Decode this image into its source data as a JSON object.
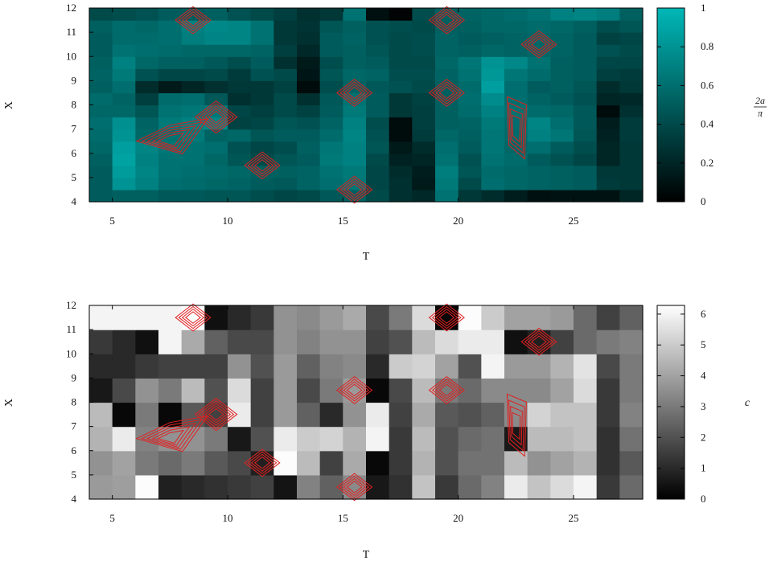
{
  "chart_data": [
    {
      "type": "heatmap",
      "title": "",
      "xlabel": "T",
      "ylabel": "X",
      "colorbar_label": "2a/π",
      "colorbar_label_num": "2a",
      "colorbar_label_den": "π",
      "colormap": "black-to-teal",
      "color_low": "#000000",
      "color_high": "#00b8b8",
      "xlim": [
        4,
        28
      ],
      "ylim": [
        4,
        12
      ],
      "clim": [
        0,
        1
      ],
      "x_ticks": [
        5,
        10,
        15,
        20,
        25
      ],
      "y_ticks": [
        4,
        5,
        6,
        7,
        8,
        9,
        10,
        11,
        12
      ],
      "color_ticks": [
        0,
        0.2,
        0.4,
        0.6,
        0.8,
        1
      ],
      "x": [
        4.5,
        5.5,
        6.5,
        7.5,
        8.5,
        9.5,
        10.5,
        11.5,
        12.5,
        13.5,
        14.5,
        15.5,
        16.5,
        17.5,
        18.5,
        19.5,
        20.5,
        21.5,
        22.5,
        23.5,
        24.5,
        25.5,
        26.5,
        27.5
      ],
      "y": [
        4.25,
        4.75,
        5.25,
        5.75,
        6.25,
        6.75,
        7.25,
        7.75,
        8.25,
        8.75,
        9.25,
        9.75,
        10.25,
        10.75,
        11.25,
        11.75
      ],
      "z": [
        [
          0.5,
          0.52,
          0.52,
          0.48,
          0.48,
          0.46,
          0.46,
          0.42,
          0.38,
          0.4,
          0.48,
          0.52,
          0.4,
          0.26,
          0.22,
          0.62,
          0.3,
          0.24,
          0.16,
          0.08,
          0.1,
          0.1,
          0.1,
          0.2
        ],
        [
          0.5,
          0.8,
          0.7,
          0.6,
          0.58,
          0.56,
          0.54,
          0.5,
          0.48,
          0.54,
          0.6,
          0.64,
          0.38,
          0.26,
          0.14,
          0.66,
          0.4,
          0.6,
          0.56,
          0.54,
          0.52,
          0.5,
          0.32,
          0.3
        ],
        [
          0.5,
          0.84,
          0.72,
          0.62,
          0.6,
          0.58,
          0.56,
          0.52,
          0.52,
          0.54,
          0.62,
          0.66,
          0.38,
          0.24,
          0.16,
          0.68,
          0.46,
          0.58,
          0.56,
          0.54,
          0.52,
          0.5,
          0.3,
          0.3
        ],
        [
          0.52,
          0.88,
          0.7,
          0.62,
          0.62,
          0.56,
          0.46,
          0.4,
          0.46,
          0.5,
          0.66,
          0.7,
          0.4,
          0.18,
          0.2,
          0.62,
          0.44,
          0.62,
          0.58,
          0.5,
          0.44,
          0.38,
          0.2,
          0.3
        ],
        [
          0.56,
          0.86,
          0.72,
          0.64,
          0.62,
          0.6,
          0.44,
          0.38,
          0.42,
          0.52,
          0.64,
          0.7,
          0.46,
          0.14,
          0.24,
          0.6,
          0.5,
          0.64,
          0.56,
          0.6,
          0.5,
          0.42,
          0.2,
          0.3
        ],
        [
          0.58,
          0.8,
          0.56,
          0.62,
          0.66,
          0.54,
          0.56,
          0.46,
          0.5,
          0.5,
          0.58,
          0.72,
          0.44,
          0.06,
          0.32,
          0.56,
          0.52,
          0.64,
          0.58,
          0.7,
          0.64,
          0.46,
          0.18,
          0.32
        ],
        [
          0.6,
          0.78,
          0.54,
          0.66,
          0.7,
          0.74,
          0.36,
          0.38,
          0.46,
          0.44,
          0.54,
          0.7,
          0.42,
          0.06,
          0.34,
          0.52,
          0.54,
          0.66,
          0.6,
          0.72,
          0.6,
          0.48,
          0.16,
          0.32
        ],
        [
          0.56,
          0.56,
          0.46,
          0.62,
          0.64,
          0.66,
          0.38,
          0.34,
          0.4,
          0.36,
          0.5,
          0.66,
          0.5,
          0.3,
          0.34,
          0.52,
          0.58,
          0.7,
          0.62,
          0.58,
          0.56,
          0.48,
          0.06,
          0.26
        ],
        [
          0.58,
          0.54,
          0.34,
          0.58,
          0.6,
          0.48,
          0.26,
          0.3,
          0.4,
          0.26,
          0.48,
          0.62,
          0.5,
          0.3,
          0.36,
          0.52,
          0.6,
          0.76,
          0.6,
          0.54,
          0.5,
          0.44,
          0.2,
          0.22
        ],
        [
          0.52,
          0.6,
          0.24,
          0.14,
          0.2,
          0.26,
          0.3,
          0.3,
          0.36,
          0.06,
          0.42,
          0.54,
          0.48,
          0.44,
          0.4,
          0.52,
          0.58,
          0.86,
          0.6,
          0.5,
          0.52,
          0.46,
          0.24,
          0.3
        ],
        [
          0.54,
          0.66,
          0.44,
          0.38,
          0.38,
          0.4,
          0.32,
          0.44,
          0.4,
          0.12,
          0.46,
          0.56,
          0.54,
          0.42,
          0.42,
          0.54,
          0.62,
          0.82,
          0.64,
          0.58,
          0.52,
          0.5,
          0.34,
          0.32
        ],
        [
          0.52,
          0.7,
          0.56,
          0.52,
          0.52,
          0.48,
          0.42,
          0.5,
          0.26,
          0.14,
          0.42,
          0.52,
          0.5,
          0.4,
          0.4,
          0.56,
          0.64,
          0.8,
          0.74,
          0.62,
          0.52,
          0.5,
          0.38,
          0.38
        ],
        [
          0.5,
          0.62,
          0.6,
          0.58,
          0.56,
          0.56,
          0.56,
          0.54,
          0.34,
          0.22,
          0.5,
          0.52,
          0.46,
          0.4,
          0.42,
          0.54,
          0.52,
          0.56,
          0.54,
          0.56,
          0.54,
          0.5,
          0.44,
          0.4
        ],
        [
          0.5,
          0.58,
          0.58,
          0.6,
          0.68,
          0.72,
          0.72,
          0.62,
          0.3,
          0.26,
          0.5,
          0.54,
          0.44,
          0.4,
          0.42,
          0.54,
          0.5,
          0.52,
          0.54,
          0.56,
          0.54,
          0.5,
          0.36,
          0.38
        ],
        [
          0.52,
          0.58,
          0.56,
          0.6,
          0.7,
          0.74,
          0.72,
          0.62,
          0.3,
          0.28,
          0.46,
          0.52,
          0.44,
          0.42,
          0.4,
          0.52,
          0.52,
          0.56,
          0.56,
          0.58,
          0.56,
          0.52,
          0.42,
          0.46
        ],
        [
          0.4,
          0.42,
          0.44,
          0.5,
          0.5,
          0.52,
          0.44,
          0.4,
          0.34,
          0.26,
          0.3,
          0.62,
          0.08,
          0.02,
          0.42,
          0.52,
          0.54,
          0.56,
          0.58,
          0.62,
          0.7,
          0.72,
          0.68,
          0.52
        ]
      ]
    },
    {
      "type": "heatmap",
      "title": "",
      "xlabel": "T",
      "ylabel": "X",
      "colorbar_label": "c",
      "colormap": "gray",
      "color_low": "#000000",
      "color_high": "#ffffff",
      "xlim": [
        4,
        28
      ],
      "ylim": [
        4,
        12
      ],
      "clim": [
        0,
        6.283
      ],
      "x_ticks": [
        5,
        10,
        15,
        20,
        25
      ],
      "y_ticks": [
        4,
        5,
        6,
        7,
        8,
        9,
        10,
        11,
        12
      ],
      "color_ticks": [
        0,
        1,
        2,
        3,
        4,
        5,
        6
      ],
      "x": [
        4.5,
        5.5,
        6.5,
        7.5,
        8.5,
        9.5,
        10.5,
        11.5,
        12.5,
        13.5,
        14.5,
        15.5,
        16.5,
        17.5,
        18.5,
        19.5,
        20.5,
        21.5,
        22.5,
        23.5,
        24.5,
        25.5,
        26.5,
        27.5
      ],
      "y": [
        4.5,
        5.5,
        6.5,
        7.5,
        8.5,
        9.5,
        10.5,
        11.5
      ],
      "z": [
        [
          3.8,
          3.9,
          6.2,
          0.8,
          1.0,
          1.2,
          1.4,
          1.6,
          0.5,
          3.2,
          2.4,
          3.4,
          0.6,
          1.2,
          4.8,
          1.4,
          2.6,
          3.2,
          5.8,
          4.8,
          5.4,
          6.0,
          1.4,
          2.6
        ],
        [
          3.6,
          4.0,
          3.0,
          2.6,
          3.0,
          2.2,
          1.8,
          0.8,
          6.2,
          4.6,
          1.6,
          4.2,
          0.2,
          1.4,
          4.4,
          2.0,
          2.8,
          2.8,
          4.6,
          3.6,
          4.0,
          4.4,
          1.2,
          2.2
        ],
        [
          4.4,
          5.8,
          3.2,
          3.6,
          3.6,
          3.0,
          0.6,
          2.0,
          5.8,
          5.0,
          5.2,
          4.4,
          6.0,
          1.4,
          4.6,
          2.0,
          2.6,
          2.8,
          0.6,
          4.6,
          4.6,
          4.8,
          1.2,
          2.8
        ],
        [
          4.6,
          0.2,
          3.0,
          0.2,
          2.2,
          1.6,
          5.8,
          1.6,
          3.8,
          2.4,
          1.0,
          3.6,
          5.8,
          1.6,
          4.2,
          2.2,
          2.0,
          2.4,
          3.4,
          5.2,
          4.8,
          4.8,
          1.4,
          3.2
        ],
        [
          0.6,
          1.8,
          3.6,
          3.0,
          4.6,
          2.0,
          5.4,
          1.6,
          3.8,
          1.8,
          3.0,
          3.8,
          0.2,
          1.8,
          4.6,
          3.0,
          2.6,
          3.4,
          3.4,
          3.4,
          4.0,
          5.4,
          1.4,
          3.0
        ],
        [
          1.0,
          1.0,
          1.4,
          1.6,
          1.6,
          1.6,
          3.6,
          2.0,
          3.8,
          2.4,
          3.2,
          3.4,
          1.0,
          5.0,
          5.2,
          4.0,
          2.0,
          6.0,
          3.8,
          3.8,
          4.4,
          5.6,
          1.8,
          3.0
        ],
        [
          1.4,
          1.0,
          0.4,
          6.0,
          4.2,
          2.4,
          1.8,
          1.8,
          3.6,
          3.2,
          3.6,
          3.6,
          1.6,
          2.0,
          4.6,
          5.4,
          5.8,
          5.8,
          0.4,
          0.8,
          1.6,
          2.6,
          3.0,
          3.2
        ],
        [
          6.0,
          6.0,
          6.0,
          6.0,
          6.2,
          0.4,
          1.0,
          1.4,
          3.6,
          3.4,
          3.8,
          4.2,
          1.8,
          3.0,
          5.4,
          0.2,
          6.2,
          5.0,
          4.0,
          4.0,
          3.8,
          2.6,
          1.6,
          2.4
        ]
      ]
    }
  ],
  "overlay": {
    "color": "#e02020",
    "contour_centers": [
      [
        8.5,
        11.5
      ],
      [
        9.5,
        7.5
      ],
      [
        7.5,
        6.5
      ],
      [
        11.5,
        5.5
      ],
      [
        15.5,
        8.5
      ],
      [
        15.5,
        4.5
      ],
      [
        19.5,
        11.5
      ],
      [
        23.5,
        10.5
      ],
      [
        19.5,
        8.5
      ],
      [
        22.5,
        7.0
      ]
    ]
  }
}
